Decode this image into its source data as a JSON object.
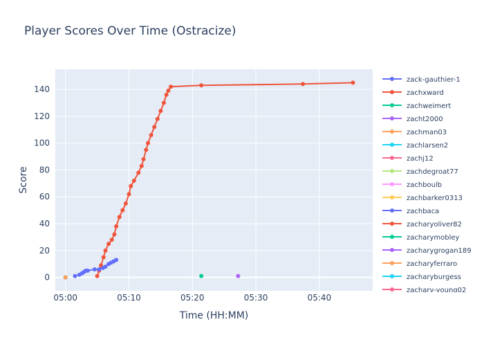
{
  "chart_data": {
    "type": "line",
    "title": "Player Scores Over Time (Ostracize)",
    "xlabel": "Time (HH:MM)",
    "ylabel": "Score",
    "x_range_min": [
      298.4,
      348.4
    ],
    "ylim": [
      -10,
      155
    ],
    "x_ticks": [
      {
        "min": 300,
        "label": "05:00"
      },
      {
        "min": 310,
        "label": "05:10"
      },
      {
        "min": 320,
        "label": "05:20"
      },
      {
        "min": 330,
        "label": "05:30"
      },
      {
        "min": 340,
        "label": "05:40"
      }
    ],
    "y_ticks": [
      0,
      20,
      40,
      60,
      80,
      100,
      120,
      140
    ],
    "grid": true,
    "plot_background": "#e5ecf6",
    "legend_position": "right",
    "series": [
      {
        "name": "zack-gauthier-1",
        "color": "#636efa",
        "x": [
          301.5,
          302.2,
          302.6,
          302.9,
          303.2,
          303.5,
          304.6,
          305.3,
          305.9,
          306.3,
          306.8,
          307.2,
          307.6,
          308.0
        ],
        "y": [
          1,
          2,
          3,
          4,
          5,
          5,
          6,
          6,
          7,
          8,
          10,
          11,
          12,
          13
        ]
      },
      {
        "name": "zachxward",
        "color": "#ef553b",
        "x": [
          305.0,
          305.3,
          305.6,
          306.0,
          306.3,
          306.8,
          307.3,
          307.7,
          308.0,
          308.5,
          309.0,
          309.5,
          310.0,
          310.3,
          310.8,
          311.5,
          312.0,
          312.3,
          312.7,
          313.0,
          313.5,
          314.0,
          314.5,
          315.0,
          315.5,
          315.9,
          316.2,
          316.6,
          321.4,
          337.4,
          345.3
        ],
        "y": [
          1,
          5,
          9,
          15,
          20,
          25,
          28,
          32,
          38,
          45,
          50,
          55,
          62,
          68,
          72,
          78,
          83,
          88,
          95,
          100,
          106,
          112,
          118,
          124,
          130,
          136,
          139,
          142,
          143,
          144,
          145
        ]
      },
      {
        "name": "zachweimert",
        "color": "#00cc96",
        "x": [
          321.4
        ],
        "y": [
          1
        ]
      },
      {
        "name": "zacht2000",
        "color": "#ab63fa",
        "x": [
          327.2
        ],
        "y": [
          1
        ]
      },
      {
        "name": "zachman03",
        "color": "#ffa15a",
        "x": [
          300.0
        ],
        "y": [
          0
        ]
      },
      {
        "name": "zachlarsen2",
        "color": "#19d3f3",
        "x": [
          300.0
        ],
        "y": [
          0
        ]
      },
      {
        "name": "zachj12",
        "color": "#ff6692",
        "x": [
          300.0
        ],
        "y": [
          0
        ]
      },
      {
        "name": "zachdegroat77",
        "color": "#b6e880",
        "x": [
          300.0
        ],
        "y": [
          0
        ]
      },
      {
        "name": "zachboulb",
        "color": "#ff97ff",
        "x": [
          300.0
        ],
        "y": [
          0
        ]
      },
      {
        "name": "zachbarker0313",
        "color": "#fecb52",
        "x": [
          300.0
        ],
        "y": [
          0
        ]
      },
      {
        "name": "zachbaca",
        "color": "#636efa",
        "x": [
          300.0
        ],
        "y": [
          0
        ]
      },
      {
        "name": "zacharyoliver82",
        "color": "#ef553b",
        "x": [
          300.0
        ],
        "y": [
          0
        ]
      },
      {
        "name": "zacharymobley",
        "color": "#00cc96",
        "x": [
          300.0
        ],
        "y": [
          0
        ]
      },
      {
        "name": "zacharygrogan189",
        "color": "#ab63fa",
        "x": [
          300.0
        ],
        "y": [
          0
        ]
      },
      {
        "name": "zacharyferraro",
        "color": "#ffa15a",
        "x": [
          300.0
        ],
        "y": [
          0
        ]
      },
      {
        "name": "zacharyburgess",
        "color": "#19d3f3",
        "x": [
          300.0
        ],
        "y": [
          0
        ]
      },
      {
        "name": "zachary-young02",
        "color": "#ff6692",
        "x": [
          300.0
        ],
        "y": [
          0
        ]
      }
    ]
  }
}
